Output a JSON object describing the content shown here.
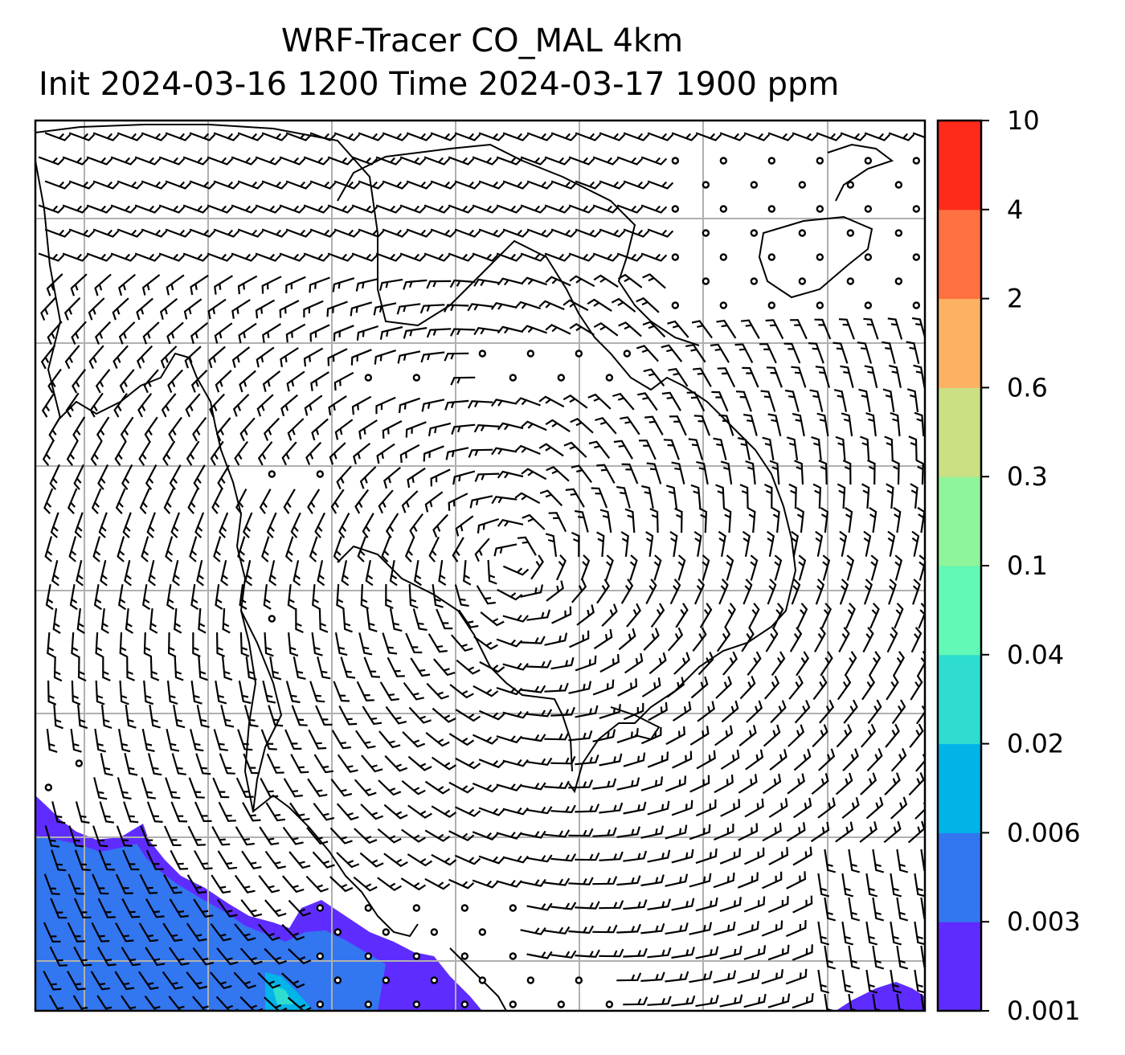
{
  "title": {
    "line1": "WRF-Tracer CO_MAL 4km",
    "line2": "Init 2024-03-16 1200 Time 2024-03-17 1900 ppm"
  },
  "colorbar": {
    "levels": [
      "0.001",
      "0.003",
      "0.006",
      "0.02",
      "0.04",
      "0.1",
      "0.3",
      "0.6",
      "2",
      "4",
      "10"
    ],
    "colors": [
      "#5f2cff",
      "#3276f0",
      "#00b4ea",
      "#2edcd0",
      "#62f8b6",
      "#8ef59a",
      "#cbe084",
      "#fcb262",
      "#ff7140",
      "#ff2a1a"
    ]
  },
  "map": {
    "background": "#ffffff",
    "gridlines": "on",
    "overlays": [
      "wind-barbs",
      "coastlines",
      "co-tracer-contours"
    ]
  }
}
